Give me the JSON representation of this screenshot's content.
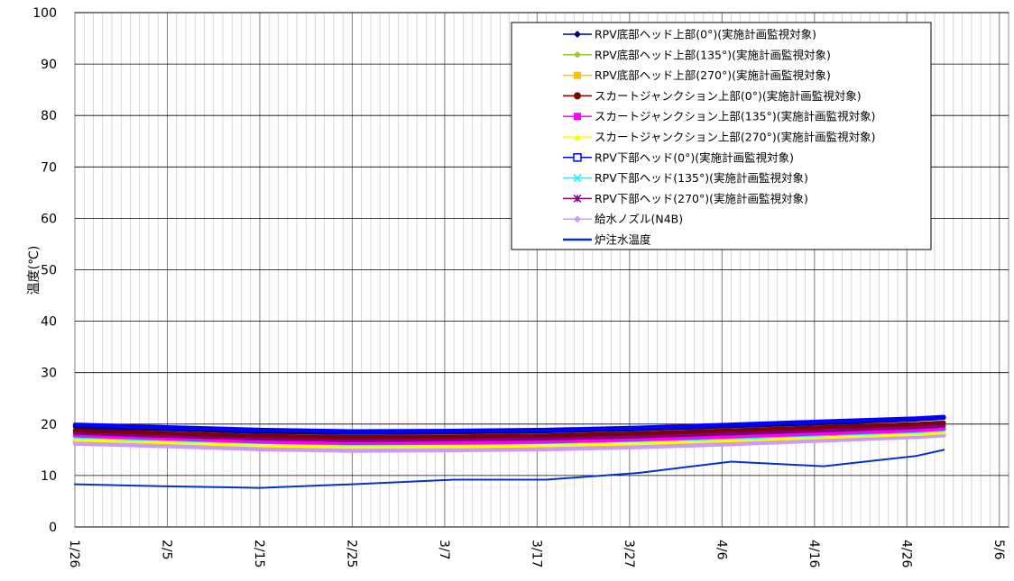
{
  "chart_data": {
    "type": "line",
    "title": "",
    "xlabel": "",
    "ylabel": "温度(℃)",
    "ylim": [
      0,
      100
    ],
    "yticks": [
      0,
      10,
      20,
      30,
      40,
      50,
      60,
      70,
      80,
      90,
      100
    ],
    "x_range": [
      "2012-01-26",
      "2012-05-06"
    ],
    "x_tick_labels": [
      "1/26",
      "2/5",
      "2/15",
      "2/25",
      "3/7",
      "3/17",
      "3/27",
      "4/6",
      "4/16",
      "4/26",
      "5/6"
    ],
    "grid": true,
    "legend_position": "top-right",
    "x": [
      "2012-01-26",
      "2012-02-05",
      "2012-02-15",
      "2012-02-25",
      "2012-03-07",
      "2012-03-17",
      "2012-03-27",
      "2012-04-06",
      "2012-04-16",
      "2012-04-26",
      "2012-04-29"
    ],
    "series": [
      {
        "name": "RPV底部ヘッド上部(0°)(実施計画監視対象)",
        "color": "#000080",
        "marker": "diamond",
        "values": [
          19.5,
          19.0,
          18.5,
          18.3,
          18.4,
          18.6,
          19.0,
          19.6,
          20.2,
          20.9,
          21.2
        ]
      },
      {
        "name": "RPV底部ヘッド上部(135°)(実施計画監視対象)",
        "color": "#9ACD32",
        "marker": "diamond",
        "values": [
          18.6,
          18.0,
          17.5,
          17.3,
          17.4,
          17.6,
          18.0,
          18.5,
          19.0,
          19.6,
          19.9
        ]
      },
      {
        "name": "RPV底部ヘッド上部(270°)(実施計画監視対象)",
        "color": "#FFC000",
        "marker": "square",
        "values": [
          16.5,
          16.0,
          15.3,
          15.0,
          15.1,
          15.3,
          15.8,
          16.5,
          17.2,
          17.8,
          18.0
        ]
      },
      {
        "name": "スカートジャンクション上部(0°)(実施計画監視対象)",
        "color": "#800000",
        "marker": "circle",
        "values": [
          18.8,
          18.2,
          17.7,
          17.5,
          17.6,
          17.8,
          18.2,
          18.8,
          19.4,
          20.0,
          20.3
        ]
      },
      {
        "name": "スカートジャンクション上部(135°)(実施計画監視対象)",
        "color": "#FF00FF",
        "marker": "square",
        "values": [
          17.8,
          17.2,
          16.6,
          16.3,
          16.4,
          16.6,
          17.0,
          17.6,
          18.2,
          18.8,
          19.1
        ]
      },
      {
        "name": "スカートジャンクション上部(270°)(実施計画監視対象)",
        "color": "#FFFF00",
        "marker": "triangle",
        "values": [
          17.0,
          16.5,
          15.9,
          15.6,
          15.7,
          15.9,
          16.3,
          16.9,
          17.5,
          18.1,
          18.4
        ]
      },
      {
        "name": "RPV下部ヘッド(0°)(実施計画監視対象)",
        "color": "#0000FF",
        "marker": "square-open",
        "values": [
          19.9,
          19.4,
          18.9,
          18.6,
          18.7,
          18.9,
          19.3,
          19.9,
          20.5,
          21.1,
          21.4
        ]
      },
      {
        "name": "RPV下部ヘッド(135°)(実施計画監視対象)",
        "color": "#00FFFF",
        "marker": "x",
        "values": [
          17.6,
          17.0,
          16.5,
          16.2,
          16.3,
          16.5,
          16.9,
          17.4,
          18.0,
          18.6,
          18.9
        ]
      },
      {
        "name": "RPV下部ヘッド(270°)(実施計画監視対象)",
        "color": "#800080",
        "marker": "star",
        "values": [
          18.3,
          17.7,
          17.2,
          16.9,
          17.0,
          17.2,
          17.6,
          18.2,
          18.8,
          19.4,
          19.7
        ]
      },
      {
        "name": "給水ノズル(N4B)",
        "color": "#CC99FF",
        "marker": "diamond",
        "values": [
          16.2,
          15.7,
          15.1,
          14.8,
          14.9,
          15.1,
          15.5,
          16.1,
          16.8,
          17.5,
          17.8
        ]
      },
      {
        "name": "炉注水温度",
        "color": "#0033CC",
        "marker": "none",
        "values": [
          8.3,
          7.9,
          7.6,
          8.3,
          9.2,
          9.2,
          10.5,
          12.7,
          11.8,
          13.8,
          15.0
        ]
      }
    ]
  }
}
